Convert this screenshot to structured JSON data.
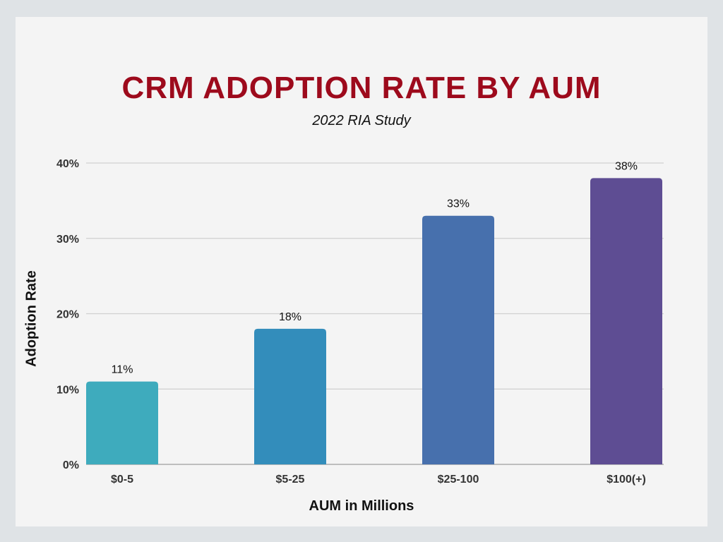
{
  "chart_data": {
    "type": "bar",
    "title": "CRM ADOPTION RATE BY AUM",
    "subtitle": "2022 RIA Study",
    "xlabel": "AUM in Millions",
    "ylabel": "Adoption Rate",
    "categories": [
      "$0-5",
      "$5-25",
      "$25-100",
      "$100(+)"
    ],
    "values": [
      11,
      18,
      33,
      38
    ],
    "data_labels": [
      "11%",
      "18%",
      "33%",
      "38%"
    ],
    "ylim": [
      0,
      40
    ],
    "yticks": [
      0,
      10,
      20,
      30,
      40
    ],
    "ytick_labels": [
      "0%",
      "10%",
      "20%",
      "30%",
      "40%"
    ],
    "grid": true,
    "colors": [
      "#3eabbd",
      "#338dbb",
      "#4770ad",
      "#5e4d93"
    ],
    "title_color": "#9d0a1c"
  }
}
